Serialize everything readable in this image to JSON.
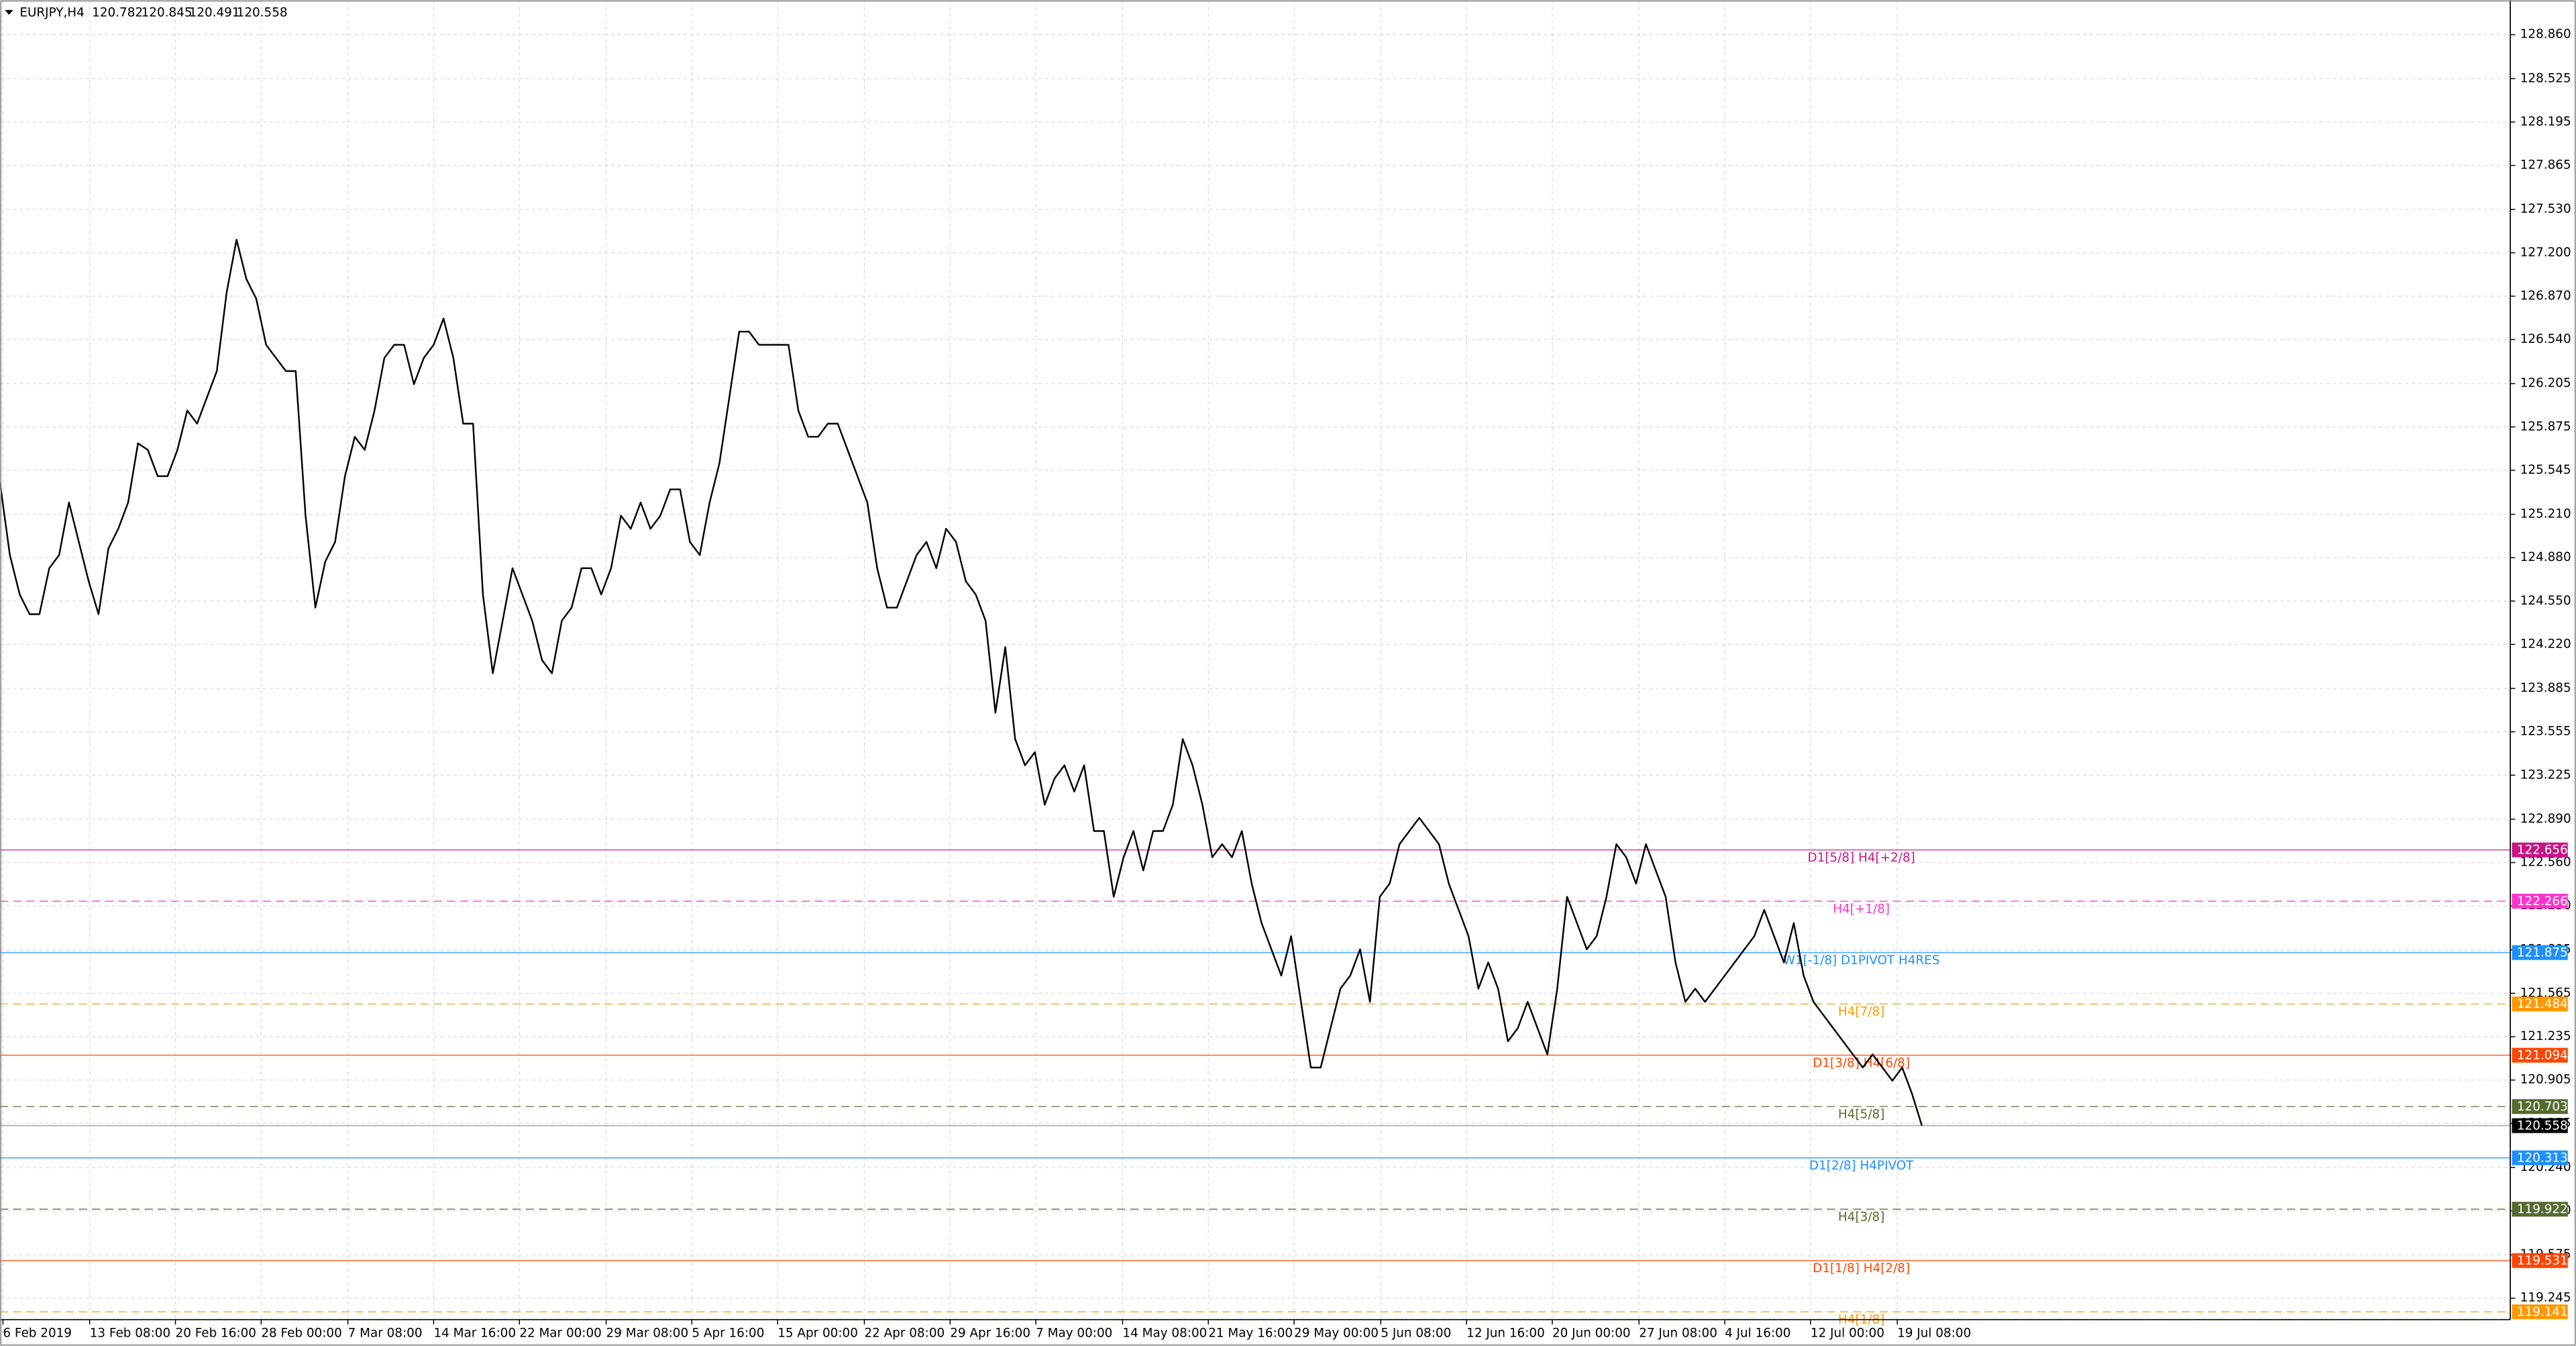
{
  "chart_data": {
    "type": "line",
    "symbol": "EURJPY,H4",
    "ohlc": [
      120.782,
      120.845,
      120.491,
      120.558
    ],
    "xlim": [
      0,
      254.7
    ],
    "xticks": [
      {
        "value": 0.3,
        "label": "6 Feb 2019"
      },
      {
        "value": 9.1,
        "label": "13 Feb 08:00"
      },
      {
        "value": 17.8,
        "label": "20 Feb 16:00"
      },
      {
        "value": 26.5,
        "label": "28 Feb 00:00"
      },
      {
        "value": 35.3,
        "label": "7 Mar 08:00"
      },
      {
        "value": 44.0,
        "label": "14 Mar 16:00"
      },
      {
        "value": 52.7,
        "label": "22 Mar 00:00"
      },
      {
        "value": 61.5,
        "label": "29 Mar 08:00"
      },
      {
        "value": 70.2,
        "label": "5 Apr 16:00"
      },
      {
        "value": 78.9,
        "label": "15 Apr 00:00"
      },
      {
        "value": 87.7,
        "label": "22 Apr 08:00"
      },
      {
        "value": 96.4,
        "label": "29 Apr 16:00"
      },
      {
        "value": 105.1,
        "label": "7 May 00:00"
      },
      {
        "value": 113.9,
        "label": "14 May 08:00"
      },
      {
        "value": 122.6,
        "label": "21 May 16:00"
      },
      {
        "value": 131.3,
        "label": "29 May 00:00"
      },
      {
        "value": 140.1,
        "label": "5 Jun 08:00"
      },
      {
        "value": 148.8,
        "label": "12 Jun 16:00"
      },
      {
        "value": 157.5,
        "label": "20 Jun 00:00"
      },
      {
        "value": 166.3,
        "label": "27 Jun 08:00"
      },
      {
        "value": 175.0,
        "label": "4 Jul 16:00"
      },
      {
        "value": 183.7,
        "label": "12 Jul 00:00"
      },
      {
        "value": 192.5,
        "label": "19 Jul 08:00"
      }
    ],
    "ylim": [
      119.082,
      129.123
    ],
    "yticks": [
      {
        "value": 128.86,
        "label": "128.860"
      },
      128.525,
      128.195,
      127.865,
      {
        "value": 127.53,
        "label": "127.530"
      },
      {
        "value": 127.2,
        "label": "127.200"
      },
      {
        "value": 126.87,
        "label": "126.870"
      },
      {
        "value": 126.54,
        "label": "126.540"
      },
      126.205,
      125.875,
      125.545,
      {
        "value": 125.21,
        "label": "125.210"
      },
      {
        "value": 124.88,
        "label": "124.880"
      },
      {
        "value": 124.55,
        "label": "124.550"
      },
      {
        "value": 124.22,
        "label": "124.220"
      },
      123.885,
      123.555,
      123.225,
      {
        "value": 122.89,
        "label": "122.890"
      },
      {
        "value": 122.56,
        "label": "122.560"
      },
      {
        "value": 122.23,
        "label": "122.230"
      },
      121.895,
      121.565,
      121.235,
      120.905,
      120.575,
      {
        "value": 120.24,
        "label": "120.240"
      },
      {
        "value": 119.91,
        "label": "119.910"
      },
      119.575,
      119.245
    ],
    "grid": true,
    "series": [
      {
        "color": "#000000",
        "values": [
          125.45,
          124.9,
          124.6,
          124.45,
          124.45,
          124.8,
          124.9,
          125.3,
          125.0,
          124.7,
          124.45,
          124.95,
          125.1,
          125.3,
          125.75,
          125.7,
          125.5,
          125.5,
          125.7,
          126.0,
          125.9,
          126.1,
          126.3,
          126.9,
          127.3,
          127.0,
          126.85,
          126.5,
          126.4,
          126.3,
          126.3,
          125.2,
          124.5,
          124.85,
          125.0,
          125.5,
          125.8,
          125.7,
          126.0,
          126.4,
          126.5,
          126.5,
          126.2,
          126.4,
          126.5,
          126.7,
          126.4,
          125.9,
          125.9,
          124.6,
          124.0,
          124.4,
          124.8,
          124.6,
          124.4,
          124.1,
          124.0,
          124.4,
          124.5,
          124.8,
          124.8,
          124.6,
          124.8,
          125.2,
          125.1,
          125.3,
          125.1,
          125.2,
          125.4,
          125.4,
          125.0,
          124.9,
          125.3,
          125.6,
          126.1,
          126.6,
          126.6,
          126.5,
          126.5,
          126.5,
          126.5,
          126.0,
          125.8,
          125.8,
          125.9,
          125.9,
          125.7,
          125.5,
          125.3,
          124.8,
          124.5,
          124.5,
          124.7,
          124.9,
          125.0,
          124.8,
          125.1,
          125.0,
          124.7,
          124.6,
          124.4,
          123.7,
          124.2,
          123.5,
          123.3,
          123.4,
          123.0,
          123.2,
          123.3,
          123.1,
          123.3,
          122.8,
          122.8,
          122.3,
          122.6,
          122.8,
          122.5,
          122.8,
          122.8,
          123.0,
          123.5,
          123.3,
          123.0,
          122.6,
          122.7,
          122.6,
          122.8,
          122.4,
          122.1,
          121.9,
          121.7,
          122.0,
          121.5,
          121.0,
          121.0,
          121.3,
          121.6,
          121.7,
          121.9,
          121.5,
          122.3,
          122.4,
          122.7,
          122.8,
          122.9,
          122.8,
          122.7,
          122.4,
          122.2,
          122.0,
          121.6,
          121.8,
          121.6,
          121.2,
          121.3,
          121.5,
          121.3,
          121.1,
          121.6,
          122.3,
          122.1,
          121.9,
          122.0,
          122.3,
          122.7,
          122.6,
          122.4,
          122.7,
          122.5,
          122.3,
          121.8,
          121.5,
          121.6,
          121.5,
          121.6,
          121.7,
          121.8,
          121.9,
          122.0,
          122.2,
          122.0,
          121.8,
          122.1,
          121.7,
          121.5,
          121.4,
          121.3,
          121.2,
          121.1,
          121.0,
          121.1,
          121.0,
          120.9,
          121.0,
          120.8,
          120.558
        ]
      }
    ],
    "levels": [
      {
        "value": 122.656,
        "label": "D1[5/8] H4[+2/8]",
        "color": "#c71585",
        "dashed": false
      },
      {
        "value": 122.266,
        "label": "H4[+1/8]",
        "color": "#ff33cc",
        "dashed": true
      },
      {
        "value": 121.875,
        "label": "W1[-1/8] D1PIVOT H4RES",
        "color": "#1e90ff",
        "dashed": false
      },
      {
        "value": 121.484,
        "label": "H4[7/8]",
        "color": "#ff9900",
        "dashed": true
      },
      {
        "value": 121.094,
        "label": "D1[3/8] H4[6/8]",
        "color": "#ff4500",
        "dashed": false
      },
      {
        "value": 120.703,
        "label": "H4[5/8]",
        "color": "#556b2f",
        "dashed": true
      },
      {
        "value": 120.313,
        "label": "D1[2/8] H4PIVOT",
        "color": "#1e90ff",
        "dashed": false
      },
      {
        "value": 119.922,
        "label": "H4[3/8]",
        "color": "#556b2f",
        "dashed": true
      },
      {
        "value": 119.531,
        "label": "D1[1/8] H4[2/8]",
        "color": "#ff4500",
        "dashed": false
      },
      {
        "value": 119.141,
        "label": "H4[1/8]",
        "color": "#ff9900",
        "dashed": true
      }
    ]
  }
}
